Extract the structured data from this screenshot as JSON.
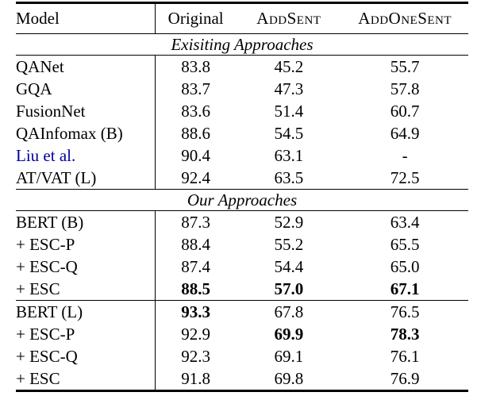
{
  "table": {
    "citation_color": "#0000A0",
    "columns": [
      "Model",
      "Original",
      "AddSent",
      "AddOneSent"
    ],
    "rows": [
      {
        "type": "header",
        "rule_below": true,
        "cells": [
          {
            "text": "Model"
          },
          {
            "text": "Original"
          },
          {
            "text": "AddSent",
            "smallcaps": true
          },
          {
            "text": "AddOneSent",
            "smallcaps": true
          }
        ]
      },
      {
        "type": "section",
        "text": "Exisiting Approaches",
        "rule_below": true
      },
      {
        "type": "data",
        "model": {
          "text": "QANet"
        },
        "values": [
          {
            "text": "83.8"
          },
          {
            "text": "45.2"
          },
          {
            "text": "55.7"
          }
        ]
      },
      {
        "type": "data",
        "model": {
          "text": "GQA"
        },
        "values": [
          {
            "text": "83.7"
          },
          {
            "text": "47.3"
          },
          {
            "text": "57.8"
          }
        ]
      },
      {
        "type": "data",
        "model": {
          "text": "FusionNet"
        },
        "values": [
          {
            "text": "83.6"
          },
          {
            "text": "51.4"
          },
          {
            "text": "60.7"
          }
        ]
      },
      {
        "type": "data",
        "model": {
          "text": "QAInfomax (B)"
        },
        "values": [
          {
            "text": "88.6"
          },
          {
            "text": "54.5"
          },
          {
            "text": "64.9"
          }
        ]
      },
      {
        "type": "data",
        "model": {
          "text": "Liu et al.",
          "citation": true
        },
        "values": [
          {
            "text": "90.4"
          },
          {
            "text": "63.1"
          },
          {
            "text": "-"
          }
        ]
      },
      {
        "type": "data",
        "model": {
          "text": "AT/VAT (L)"
        },
        "rule_below": true,
        "values": [
          {
            "text": "92.4"
          },
          {
            "text": "63.5"
          },
          {
            "text": "72.5"
          }
        ]
      },
      {
        "type": "section",
        "text": "Our Approaches",
        "rule_below": true
      },
      {
        "type": "data",
        "model": {
          "text": "BERT (B)"
        },
        "values": [
          {
            "text": "87.3"
          },
          {
            "text": "52.9"
          },
          {
            "text": "63.4"
          }
        ]
      },
      {
        "type": "data",
        "model": {
          "text": "+ ESC-P"
        },
        "values": [
          {
            "text": "88.4"
          },
          {
            "text": "55.2"
          },
          {
            "text": "65.5"
          }
        ]
      },
      {
        "type": "data",
        "model": {
          "text": "+ ESC-Q"
        },
        "values": [
          {
            "text": "87.4"
          },
          {
            "text": "54.4"
          },
          {
            "text": "65.0"
          }
        ]
      },
      {
        "type": "data",
        "model": {
          "text": "+ ESC"
        },
        "rule_below": true,
        "values": [
          {
            "text": "88.5",
            "bold": true
          },
          {
            "text": "57.0",
            "bold": true
          },
          {
            "text": "67.1",
            "bold": true
          }
        ]
      },
      {
        "type": "data",
        "model": {
          "text": "BERT (L)"
        },
        "values": [
          {
            "text": "93.3",
            "bold": true
          },
          {
            "text": "67.8"
          },
          {
            "text": "76.5"
          }
        ]
      },
      {
        "type": "data",
        "model": {
          "text": "+ ESC-P"
        },
        "values": [
          {
            "text": "92.9"
          },
          {
            "text": "69.9",
            "bold": true
          },
          {
            "text": "78.3",
            "bold": true
          }
        ]
      },
      {
        "type": "data",
        "model": {
          "text": "+ ESC-Q"
        },
        "values": [
          {
            "text": "92.3"
          },
          {
            "text": "69.1"
          },
          {
            "text": "76.1"
          }
        ]
      },
      {
        "type": "data",
        "model": {
          "text": "+ ESC"
        },
        "values": [
          {
            "text": "91.8"
          },
          {
            "text": "69.8"
          },
          {
            "text": "76.9"
          }
        ]
      }
    ]
  }
}
